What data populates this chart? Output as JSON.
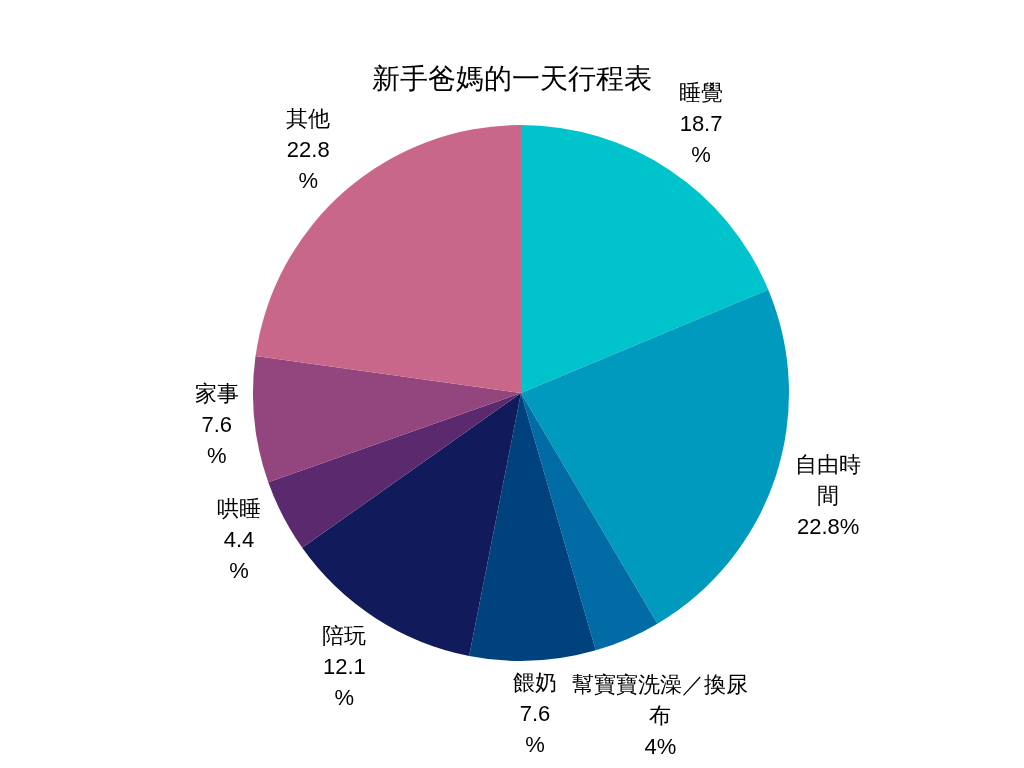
{
  "chart_data": {
    "type": "pie",
    "title": "新手爸媽的一天行程表",
    "categories": [
      "睡覺",
      "自由時間",
      "幫寶寶洗澡／換尿布",
      "餵奶",
      "陪玩",
      "哄睡",
      "家事",
      "其他"
    ],
    "values": [
      18.7,
      22.8,
      4,
      7.6,
      12.1,
      4.4,
      7.6,
      22.8
    ],
    "value_labels": [
      "18.7%",
      "22.8%",
      "4%",
      "7.6%",
      "12.1%",
      "4.4%",
      "7.6%",
      "22.8%"
    ],
    "colors": [
      "#00c3cb",
      "#009abf",
      "#006ba4",
      "#00427e",
      "#111a5a",
      "#5b2a6e",
      "#93457d",
      "#c9678a"
    ]
  }
}
